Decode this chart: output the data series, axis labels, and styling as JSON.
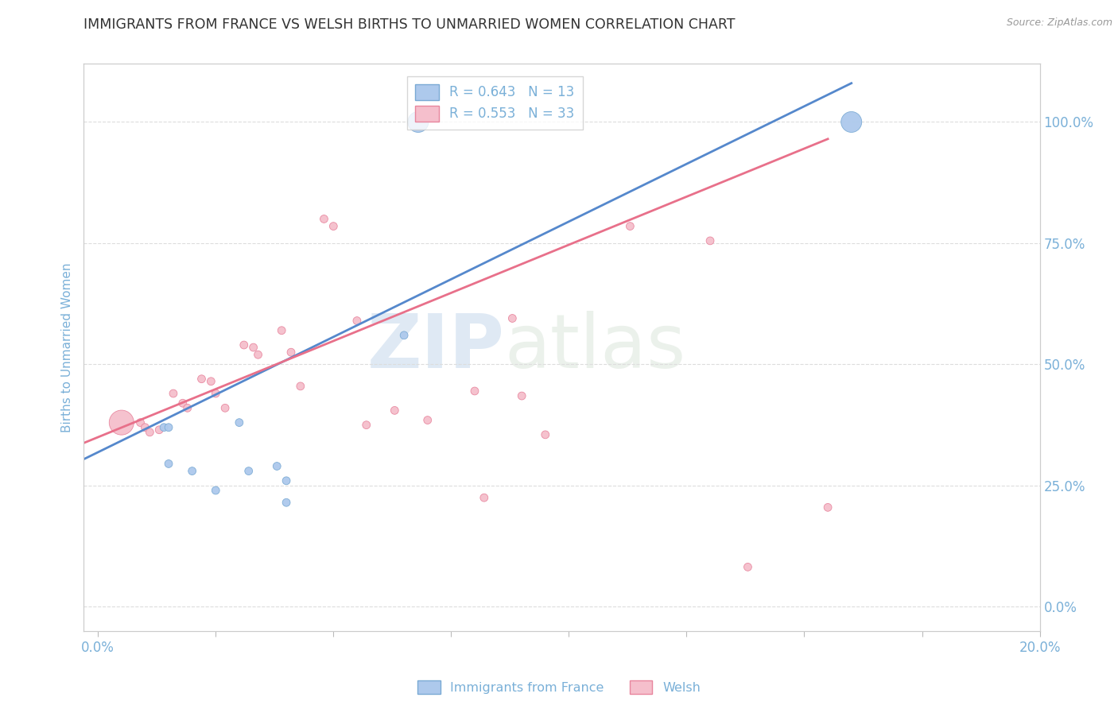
{
  "title": "IMMIGRANTS FROM FRANCE VS WELSH BIRTHS TO UNMARRIED WOMEN CORRELATION CHART",
  "source": "Source: ZipAtlas.com",
  "ylabel": "Births to Unmarried Women",
  "legend_blue_label": "R = 0.643   N = 13",
  "legend_pink_label": "R = 0.553   N = 33",
  "watermark": "ZIPatlas",
  "blue_color": "#adc9ec",
  "blue_edge": "#7aaad4",
  "pink_color": "#f5bfcc",
  "pink_edge": "#e8869e",
  "blue_line_color": "#5588cc",
  "pink_line_color": "#e8708a",
  "title_color": "#333333",
  "source_color": "#999999",
  "axis_label_color": "#7ab0d8",
  "grid_color": "#dddddd",
  "blue_scatter_x": [
    0.014,
    0.015,
    0.015,
    0.02,
    0.025,
    0.03,
    0.032,
    0.038,
    0.04,
    0.04,
    0.065,
    0.068,
    0.16
  ],
  "blue_scatter_y": [
    0.37,
    0.37,
    0.295,
    0.28,
    0.24,
    0.38,
    0.28,
    0.29,
    0.26,
    0.215,
    0.56,
    1.0,
    1.0
  ],
  "blue_sizes": [
    50,
    50,
    50,
    50,
    50,
    50,
    50,
    50,
    50,
    50,
    50,
    350,
    350
  ],
  "pink_scatter_x": [
    0.005,
    0.009,
    0.01,
    0.011,
    0.013,
    0.016,
    0.018,
    0.019,
    0.022,
    0.024,
    0.025,
    0.027,
    0.031,
    0.033,
    0.034,
    0.039,
    0.041,
    0.043,
    0.048,
    0.05,
    0.055,
    0.057,
    0.063,
    0.07,
    0.08,
    0.082,
    0.088,
    0.09,
    0.095,
    0.113,
    0.13,
    0.138,
    0.155
  ],
  "pink_scatter_y": [
    0.38,
    0.38,
    0.37,
    0.36,
    0.365,
    0.44,
    0.42,
    0.41,
    0.47,
    0.465,
    0.44,
    0.41,
    0.54,
    0.535,
    0.52,
    0.57,
    0.525,
    0.455,
    0.8,
    0.785,
    0.59,
    0.375,
    0.405,
    0.385,
    0.445,
    0.225,
    0.595,
    0.435,
    0.355,
    0.785,
    0.755,
    0.082,
    0.205
  ],
  "pink_sizes": [
    500,
    50,
    50,
    50,
    50,
    50,
    50,
    50,
    50,
    50,
    50,
    50,
    50,
    50,
    50,
    50,
    50,
    50,
    50,
    50,
    50,
    50,
    50,
    50,
    50,
    50,
    50,
    50,
    50,
    50,
    50,
    50,
    50
  ],
  "blue_line_x": [
    -0.005,
    0.16
  ],
  "blue_line_y": [
    0.295,
    1.08
  ],
  "pink_line_x": [
    -0.005,
    0.155
  ],
  "pink_line_y": [
    0.33,
    0.965
  ],
  "xlim": [
    -0.003,
    0.2
  ],
  "ylim": [
    -0.05,
    1.12
  ],
  "right_yticks": [
    0.0,
    0.25,
    0.5,
    0.75,
    1.0
  ],
  "right_ylabels": [
    "0.0%",
    "25.0%",
    "50.0%",
    "75.0%",
    "100.0%"
  ],
  "xtick_vals": [
    0.0,
    0.025,
    0.05,
    0.075,
    0.1,
    0.125,
    0.15,
    0.175,
    0.2
  ],
  "xtick_labels": [
    "0.0%",
    "",
    "",
    "",
    "",
    "",
    "",
    "",
    "20.0%"
  ],
  "figsize": [
    14.06,
    8.92
  ],
  "dpi": 100
}
